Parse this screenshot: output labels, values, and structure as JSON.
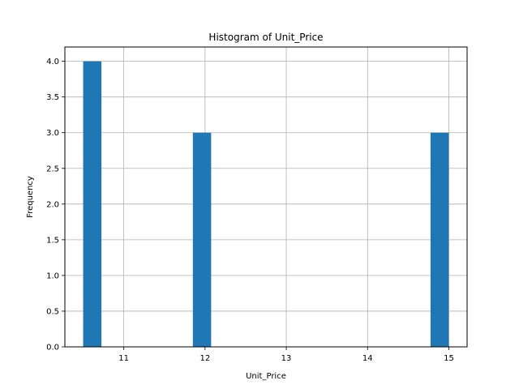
{
  "chart_data": {
    "type": "bar",
    "title": "Histogram of Unit_Price",
    "xlabel": "Unit_Price",
    "ylabel": "Frequency",
    "xlim": [
      10.275,
      15.225
    ],
    "ylim": [
      0,
      4.2
    ],
    "x_ticks": [
      11,
      12,
      13,
      14,
      15
    ],
    "x_tick_labels": [
      "11",
      "12",
      "13",
      "14",
      "15"
    ],
    "y_ticks": [
      0,
      0.5,
      1,
      1.5,
      2,
      2.5,
      3,
      3.5,
      4
    ],
    "y_tick_labels": [
      "0.0",
      "0.5",
      "1.0",
      "1.5",
      "2.0",
      "2.5",
      "3.0",
      "3.5",
      "4.0"
    ],
    "grid": true,
    "bar_color": "#1f77b4",
    "bins": [
      {
        "x0": 10.5,
        "x1": 10.725,
        "count": 4
      },
      {
        "x0": 11.85,
        "x1": 12.075,
        "count": 3
      },
      {
        "x0": 14.775,
        "x1": 15.0,
        "count": 3
      }
    ]
  }
}
